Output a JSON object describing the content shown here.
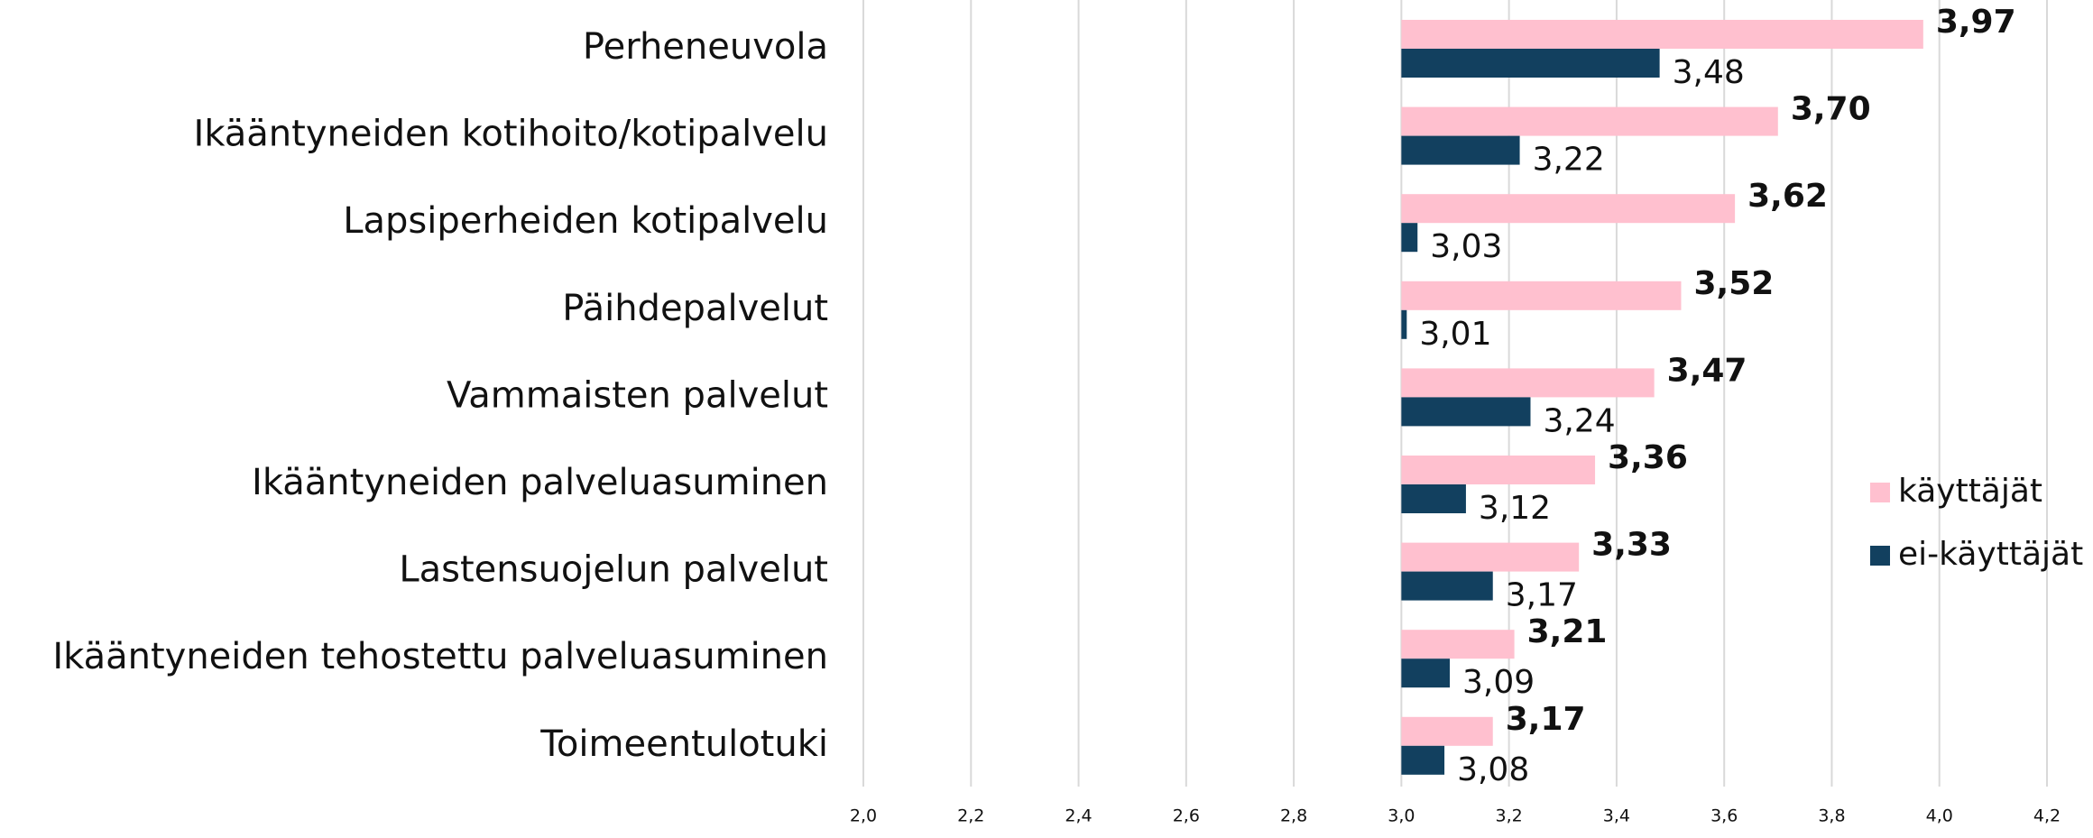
{
  "chart_data": {
    "type": "hbar",
    "categories": [
      "Perheneuvola",
      "Ikääntyneiden kotihoito/kotipalvelu",
      "Lapsiperheiden kotipalvelu",
      "Päihdepalvelut",
      "Vammaisten palvelut",
      "Ikääntyneiden palveluasuminen",
      "Lastensuojelun palvelut",
      "Ikääntyneiden tehostettu palveluasuminen",
      "Toimeentulotuki"
    ],
    "series": [
      {
        "name": "käyttäjät",
        "color": "#ffc0cf",
        "values": [
          3.97,
          3.7,
          3.62,
          3.52,
          3.47,
          3.36,
          3.33,
          3.21,
          3.17
        ],
        "value_labels": [
          "3,97",
          "3,70",
          "3,62",
          "3,52",
          "3,47",
          "3,36",
          "3,33",
          "3,21",
          "3,17"
        ]
      },
      {
        "name": "ei-käyttäjät",
        "color": "#12405f",
        "values": [
          3.48,
          3.22,
          3.03,
          3.01,
          3.24,
          3.12,
          3.17,
          3.09,
          3.08
        ],
        "value_labels": [
          "3,48",
          "3,22",
          "3,03",
          "3,01",
          "3,24",
          "3,12",
          "3,17",
          "3,09",
          "3,08"
        ]
      }
    ],
    "base": 3,
    "xlim": [
      2,
      4.2
    ],
    "xticks": [
      {
        "value": 2,
        "label": "2,0"
      },
      {
        "value": 2.2,
        "label": "2,2"
      },
      {
        "value": 2.4,
        "label": "2,4"
      },
      {
        "value": 2.6,
        "label": "2,6"
      },
      {
        "value": 2.8,
        "label": "2,8"
      },
      {
        "value": 3,
        "label": "3,0"
      },
      {
        "value": 3.2,
        "label": "3,2"
      },
      {
        "value": 3.4,
        "label": "3,4"
      },
      {
        "value": 3.6,
        "label": "3,6"
      },
      {
        "value": 3.8,
        "label": "3,8"
      },
      {
        "value": 4,
        "label": "4,0"
      },
      {
        "value": 4.2,
        "label": "4,2"
      }
    ],
    "grid": true,
    "legend": "right"
  }
}
